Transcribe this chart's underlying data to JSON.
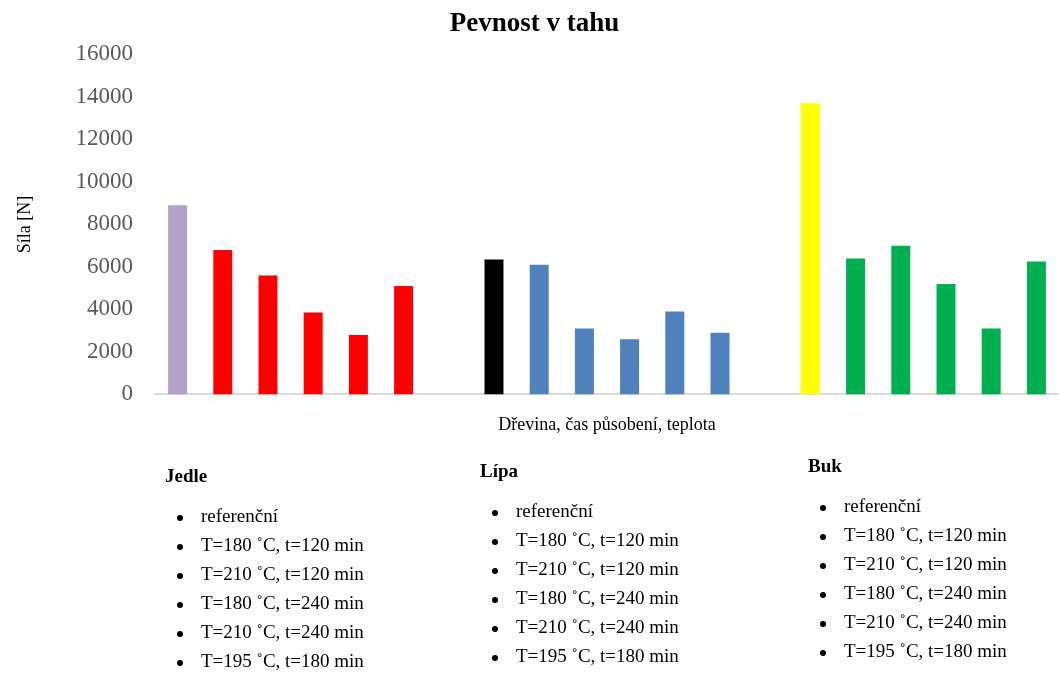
{
  "chart_data": {
    "type": "bar",
    "title": "Pevnost v tahu",
    "xlabel": "Dřevina, čas působení, teplota",
    "ylabel": "Síla [N]",
    "categories": [
      null,
      null,
      null,
      null,
      null,
      null,
      null,
      null,
      null,
      null,
      null,
      null,
      null,
      null,
      null,
      null,
      null,
      null,
      null,
      null
    ],
    "values": [
      8900,
      6800,
      5600,
      3850,
      2800,
      5100,
      null,
      6350,
      6100,
      3100,
      2600,
      3900,
      2900,
      null,
      13700,
      6400,
      7000,
      5200,
      3100,
      6250
    ],
    "colors": [
      "#b3a2c7",
      "#ff0000",
      "#ff0000",
      "#ff0000",
      "#ff0000",
      "#ff0000",
      "#ffffff",
      "#000000",
      "#4f81bd",
      "#4f81bd",
      "#4f81bd",
      "#4f81bd",
      "#4f81bd",
      "#ffffff",
      "#ffff00",
      "#00b050",
      "#00b050",
      "#00b050",
      "#00b050",
      "#00b050"
    ],
    "ylim": [
      0,
      16000
    ],
    "yticks": [
      0,
      2000,
      4000,
      6000,
      8000,
      10000,
      12000,
      14000,
      16000
    ],
    "grid": false,
    "legend": false,
    "annotations": [
      "Jedle",
      "referenční",
      "T=180 ˚C, t=120 min",
      "T=210 ˚C, t=120 min",
      "T=180 ˚C, t=240 min",
      "T=210 ˚C, t=240 min",
      "T=195 ˚C, t=180 min",
      "Lípa",
      "referenční",
      "T=180 ˚C, t=120 min",
      "T=210 ˚C, t=120 min",
      "T=180 ˚C, t=240 min",
      "T=210 ˚C, t=240 min",
      "T=195 ˚C, t=180 min",
      "Buk",
      "referenční",
      "T=180 ˚C, t=120 min",
      "T=210 ˚C, t=120 min",
      "T=180 ˚C, t=240 min",
      "T=210 ˚C, t=240 min",
      "T=195 ˚C, t=180 min"
    ]
  }
}
